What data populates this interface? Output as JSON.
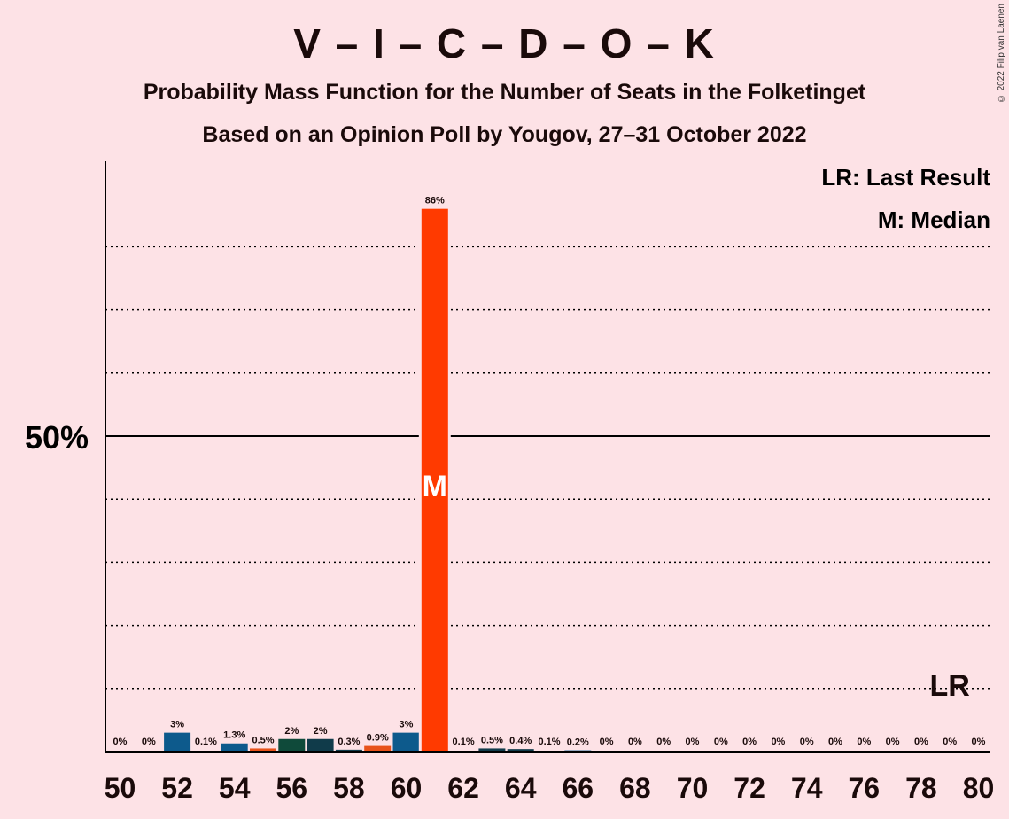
{
  "title": "V – I – C – D – O – K",
  "subtitle_1": "Probability Mass Function for the Number of Seats in the Folketinget",
  "subtitle_2": "Based on an Opinion Poll by Yougov, 27–31 October 2022",
  "copyright": "© 2022 Filip van Laenen",
  "legend": {
    "last_result": "LR: Last Result",
    "median": "M: Median"
  },
  "y_axis_label": "50%",
  "median_marker": "M",
  "last_result_marker": "LR",
  "colors": {
    "background": "#fde2e6",
    "blue": "#0d5a8c",
    "orange": "#e8521a",
    "dark_teal": "#0f4a3a",
    "dark_slate": "#103b4a",
    "median_bar": "#ff3a00",
    "grid": "#000000"
  },
  "chart_data": {
    "type": "bar",
    "x": [
      50,
      51,
      52,
      53,
      54,
      55,
      56,
      57,
      58,
      59,
      60,
      61,
      62,
      63,
      64,
      65,
      66,
      67,
      68,
      69,
      70,
      71,
      72,
      73,
      74,
      75,
      76,
      77,
      78,
      79,
      80
    ],
    "values": [
      0,
      0,
      3,
      0.1,
      1.3,
      0.5,
      2,
      2,
      0.3,
      0.9,
      3,
      86,
      0.1,
      0.5,
      0.4,
      0.1,
      0.2,
      0,
      0,
      0,
      0,
      0,
      0,
      0,
      0,
      0,
      0,
      0,
      0,
      0,
      0
    ],
    "labels": [
      "0%",
      "0%",
      "3%",
      "0.1%",
      "1.3%",
      "0.5%",
      "2%",
      "2%",
      "0.3%",
      "0.9%",
      "3%",
      "86%",
      "0.1%",
      "0.5%",
      "0.4%",
      "0.1%",
      "0.2%",
      "0%",
      "0%",
      "0%",
      "0%",
      "0%",
      "0%",
      "0%",
      "0%",
      "0%",
      "0%",
      "0%",
      "0%",
      "0%",
      "0%"
    ],
    "bar_colors": [
      "blue",
      "blue",
      "blue",
      "blue",
      "blue",
      "orange",
      "dark_teal",
      "dark_slate",
      "dark_slate",
      "orange",
      "blue",
      "median_bar",
      "blue",
      "dark_slate",
      "dark_slate",
      "blue",
      "blue",
      "blue",
      "blue",
      "blue",
      "blue",
      "blue",
      "blue",
      "blue",
      "blue",
      "blue",
      "blue",
      "blue",
      "blue",
      "blue",
      "blue"
    ],
    "x_tick_labels": [
      "50",
      "52",
      "54",
      "56",
      "58",
      "60",
      "62",
      "64",
      "66",
      "68",
      "70",
      "72",
      "74",
      "76",
      "78",
      "80"
    ],
    "ylim": [
      0,
      94
    ],
    "gridlines": [
      10,
      20,
      30,
      40,
      60,
      70,
      80
    ],
    "threshold_line": 50,
    "median": 61,
    "last_result": 79
  }
}
